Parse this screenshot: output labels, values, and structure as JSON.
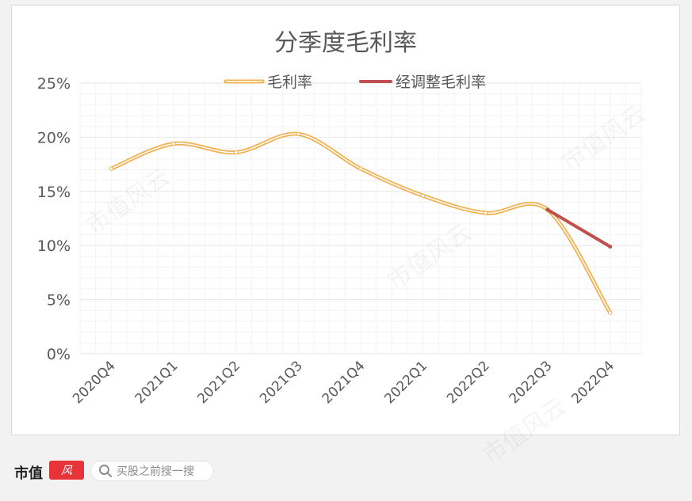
{
  "chart_data": {
    "type": "line",
    "title": "分季度毛利率",
    "categories": [
      "2020Q4",
      "2021Q1",
      "2021Q2",
      "2021Q3",
      "2021Q4",
      "2022Q1",
      "2022Q2",
      "2022Q3",
      "2022Q4"
    ],
    "series": [
      {
        "name": "毛利率",
        "values": [
          17.1,
          19.4,
          18.6,
          20.3,
          17.1,
          14.6,
          13.0,
          13.3,
          3.8
        ],
        "color": "#f0b050"
      },
      {
        "name": "经调整毛利率",
        "values": [
          null,
          null,
          null,
          null,
          null,
          null,
          null,
          13.3,
          9.9
        ],
        "color": "#c0504d"
      }
    ],
    "yticks": [
      "0%",
      "5%",
      "10%",
      "15%",
      "20%",
      "25%"
    ],
    "ylim": [
      0,
      25
    ],
    "grid": true,
    "legend": "top"
  },
  "footer": {
    "brand": "市值",
    "search_placeholder": "买股之前搜一搜"
  },
  "watermark_text": "市值风云"
}
